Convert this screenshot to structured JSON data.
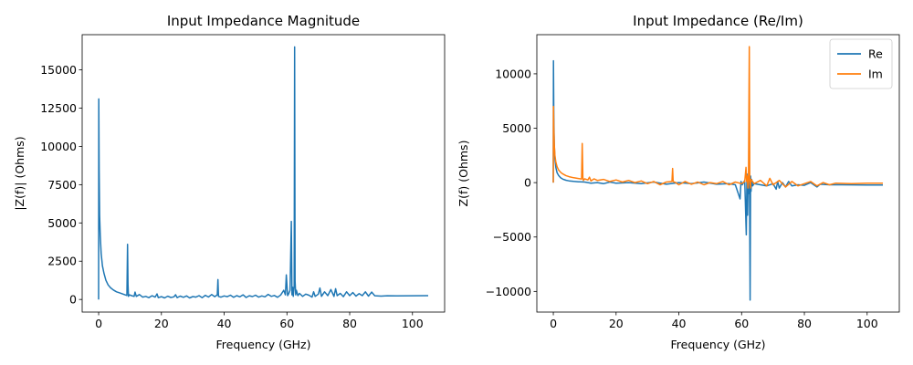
{
  "chart_data": [
    {
      "type": "line",
      "title": "Input Impedance Magnitude",
      "xlabel": "Frequency (GHz)",
      "ylabel": "|Z(f)| (Ohms)",
      "xlim": [
        -5.25,
        110.25
      ],
      "ylim": [
        -825,
        17300
      ],
      "xticks": [
        0,
        20,
        40,
        60,
        80,
        100
      ],
      "yticks": [
        0,
        2500,
        5000,
        7500,
        10000,
        12500,
        15000
      ],
      "ytick_labels": [
        "0",
        "2500",
        "5000",
        "7500",
        "10000",
        "12500",
        "15000"
      ],
      "grid": false,
      "series": [
        {
          "color": "#1f77b4",
          "x": [
            0,
            0.05,
            0.15,
            0.3,
            0.5,
            0.8,
            1.2,
            1.7,
            2.3,
            3.0,
            3.8,
            4.7,
            5.7,
            6.8,
            8.0,
            9.0,
            9.2,
            9.35,
            9.5,
            9.8,
            10.5,
            11.3,
            11.6,
            12.0,
            13,
            14,
            15,
            16,
            17,
            18,
            18.6,
            19,
            20,
            21,
            22,
            23,
            24,
            24.5,
            25,
            26,
            27,
            28,
            29,
            30,
            31,
            32,
            33,
            34,
            35,
            36,
            37,
            37.8,
            38.0,
            38.2,
            39,
            40,
            41,
            42,
            43,
            44,
            45,
            46,
            47,
            48,
            49,
            50,
            51,
            52,
            53,
            54,
            55,
            56,
            57,
            58,
            59,
            59.5,
            59.8,
            60.2,
            60.5,
            61.0,
            61.4,
            61.6,
            61.8,
            62.0,
            62.3,
            62.45,
            62.6,
            62.8,
            63.0,
            63.5,
            64,
            65,
            66,
            67,
            68,
            68.5,
            69,
            70,
            70.5,
            71,
            72,
            73,
            74,
            75,
            75.5,
            76,
            77,
            78,
            79,
            80,
            81,
            82,
            83,
            84,
            85,
            86,
            87,
            88,
            90,
            92,
            95,
            100,
            105
          ],
          "y": [
            0,
            13100,
            8500,
            5500,
            4200,
            3000,
            2200,
            1700,
            1250,
            950,
            760,
            620,
            500,
            420,
            330,
            260,
            3600,
            1000,
            200,
            300,
            250,
            200,
            480,
            200,
            320,
            150,
            200,
            120,
            240,
            150,
            360,
            120,
            180,
            100,
            210,
            130,
            170,
            310,
            120,
            220,
            140,
            230,
            100,
            190,
            150,
            250,
            120,
            270,
            160,
            320,
            180,
            300,
            1300,
            200,
            150,
            230,
            180,
            280,
            140,
            250,
            170,
            300,
            130,
            240,
            190,
            280,
            150,
            230,
            170,
            330,
            200,
            260,
            140,
            290,
            600,
            300,
            1600,
            250,
            350,
            600,
            5100,
            300,
            800,
            200,
            900,
            16500,
            1200,
            300,
            600,
            250,
            400,
            200,
            350,
            280,
            150,
            500,
            200,
            350,
            750,
            200,
            500,
            250,
            650,
            200,
            700,
            250,
            400,
            180,
            500,
            250,
            450,
            220,
            380,
            250,
            500,
            220,
            480,
            240,
            220,
            240,
            230,
            245,
            250
          ]
        }
      ]
    },
    {
      "type": "line",
      "title": "Input Impedance (Re/Im)",
      "xlabel": "Frequency (GHz)",
      "ylabel": "Z(f) (Ohms)",
      "xlim": [
        -5.25,
        110.25
      ],
      "ylim": [
        -11900,
        13600
      ],
      "xticks": [
        0,
        20,
        40,
        60,
        80,
        100
      ],
      "yticks": [
        -10000,
        -5000,
        0,
        5000,
        10000
      ],
      "ytick_labels": [
        "−10000",
        "−5000",
        "0",
        "5000",
        "10000"
      ],
      "grid": false,
      "legend": "top-right",
      "series": [
        {
          "name": "Re",
          "color": "#1f77b4",
          "x": [
            0,
            0.05,
            0.15,
            0.3,
            0.5,
            0.8,
            1.2,
            1.7,
            2.3,
            3.0,
            4.0,
            5.0,
            6.5,
            8.0,
            9.3,
            10,
            12,
            14,
            16,
            18,
            20,
            24,
            28,
            32,
            36,
            40,
            44,
            48,
            52,
            56,
            58,
            59.5,
            59.8,
            60.2,
            61,
            61.5,
            61.7,
            61.9,
            62.1,
            62.3,
            62.5,
            62.7,
            62.85,
            63.0,
            63.2,
            63.5,
            64,
            66,
            68,
            70,
            71,
            71.5,
            72,
            73,
            74,
            75,
            76,
            78,
            80,
            82,
            83,
            84,
            85,
            88,
            92,
            96,
            100,
            105
          ],
          "y": [
            0,
            11200,
            6000,
            3500,
            2200,
            1400,
            900,
            650,
            450,
            320,
            220,
            160,
            110,
            80,
            60,
            50,
            -50,
            0,
            -100,
            50,
            -50,
            0,
            -100,
            50,
            -150,
            0,
            -100,
            50,
            -150,
            -100,
            -200,
            -1500,
            100,
            -200,
            200,
            -4800,
            800,
            -3000,
            500,
            -1000,
            300,
            -10800,
            600,
            -800,
            300,
            -300,
            -100,
            -200,
            -300,
            -100,
            -600,
            100,
            -500,
            0,
            -400,
            100,
            -300,
            -200,
            -250,
            0,
            -200,
            -400,
            -150,
            -200,
            -200,
            -210,
            -215,
            -220
          ]
        },
        {
          "name": "Im",
          "color": "#ff7f0e",
          "x": [
            0,
            0.05,
            0.15,
            0.3,
            0.5,
            0.8,
            1.2,
            1.7,
            2.3,
            3.0,
            4.0,
            5.0,
            6.5,
            8.0,
            9.0,
            9.2,
            9.4,
            9.6,
            10,
            11,
            11.5,
            12,
            13,
            14,
            16,
            18,
            20,
            22,
            24,
            26,
            28,
            30,
            32,
            34,
            36,
            37.8,
            38.0,
            38.2,
            39,
            40,
            42,
            44,
            46,
            48,
            50,
            52,
            54,
            56,
            58,
            60,
            61.0,
            61.4,
            61.6,
            61.8,
            62.0,
            62.2,
            62.45,
            62.6,
            62.8,
            63.0,
            64,
            66,
            68,
            69,
            70,
            72,
            74,
            76,
            78,
            80,
            82,
            84,
            86,
            88,
            90,
            95,
            100,
            105
          ],
          "y": [
            0,
            7000,
            5000,
            3500,
            2500,
            1900,
            1450,
            1150,
            950,
            800,
            650,
            550,
            450,
            380,
            330,
            3600,
            500,
            200,
            350,
            250,
            500,
            150,
            350,
            200,
            300,
            100,
            250,
            50,
            200,
            0,
            150,
            -100,
            100,
            -200,
            50,
            100,
            1300,
            100,
            0,
            -200,
            100,
            -150,
            50,
            -200,
            0,
            -100,
            100,
            -200,
            50,
            -100,
            100,
            1400,
            100,
            600,
            -500,
            200,
            12500,
            300,
            -500,
            300,
            -100,
            200,
            -300,
            400,
            -200,
            200,
            -400,
            100,
            -300,
            -100,
            100,
            -300,
            0,
            -200,
            -50,
            -100,
            -50,
            -50
          ]
        }
      ]
    }
  ]
}
